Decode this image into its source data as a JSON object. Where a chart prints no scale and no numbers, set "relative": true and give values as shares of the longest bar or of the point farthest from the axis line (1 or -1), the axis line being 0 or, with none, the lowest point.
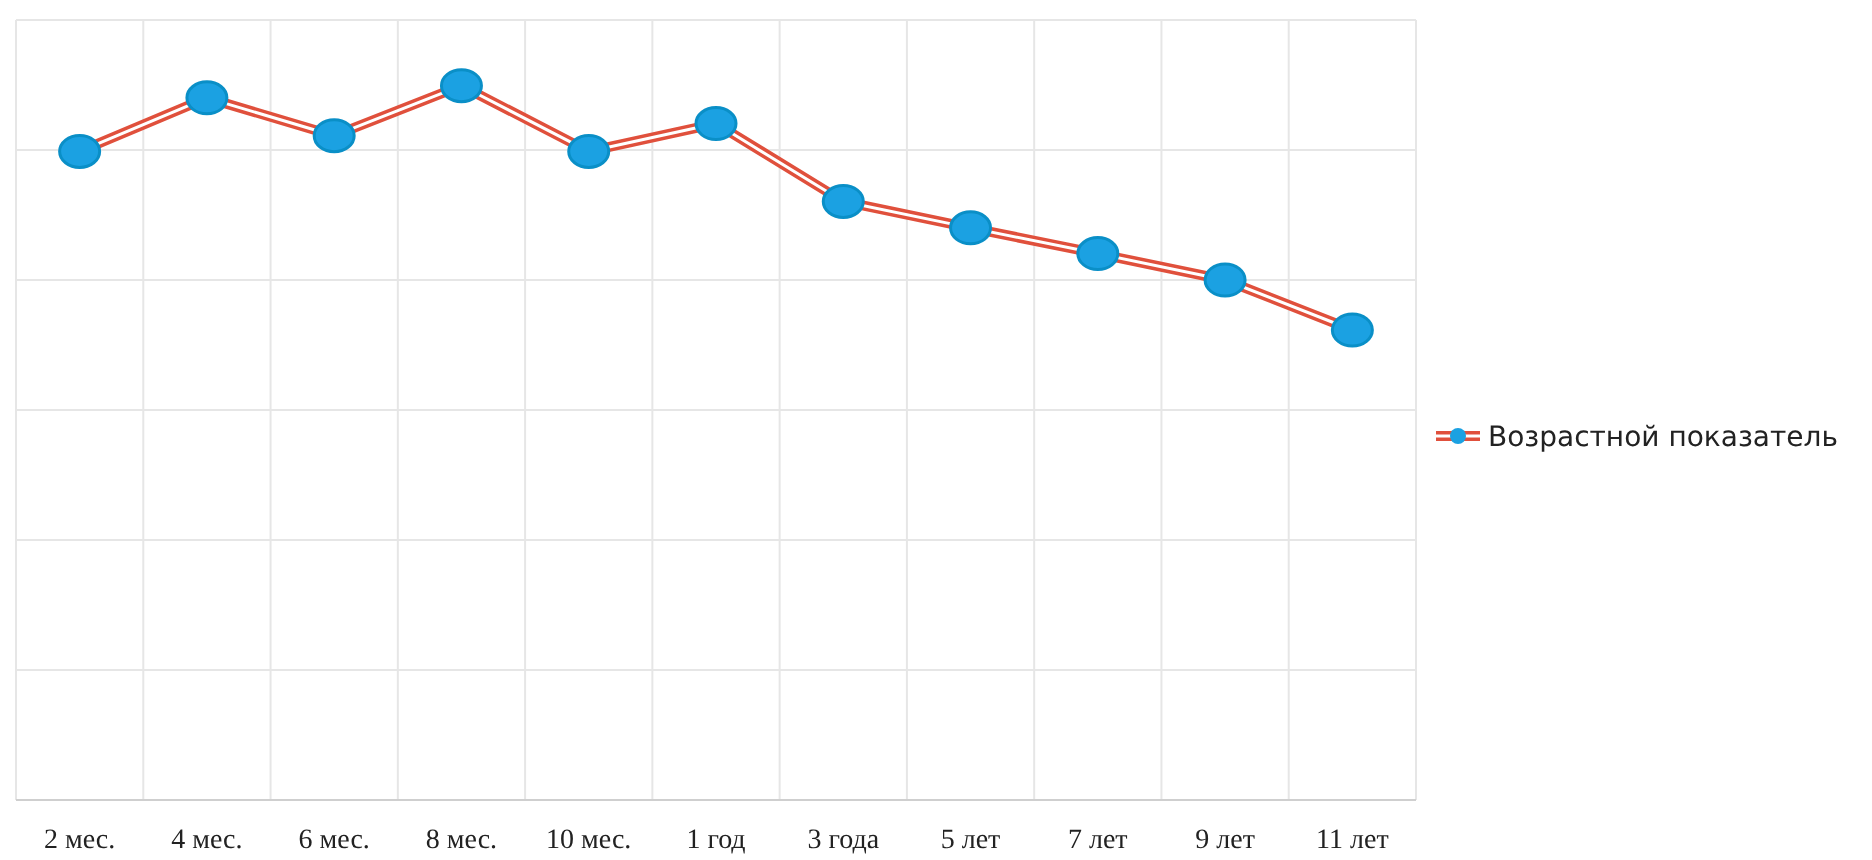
{
  "chart_data": {
    "type": "line",
    "relative": true,
    "categories": [
      "2 мес.",
      "4 мес.",
      "6 мес.",
      "8 мес.",
      "10 мес.",
      "1 год",
      "3 года",
      "5 лет",
      "7 лет",
      "9 лет",
      "11 лет"
    ],
    "series": [
      {
        "name": "Возрастной показатель",
        "color": "#e0503c",
        "values": [
          0.908,
          0.983,
          0.93,
          1,
          0.908,
          0.947,
          0.838,
          0.801,
          0.765,
          0.728,
          0.658
        ]
      }
    ],
    "marker": "circle",
    "grid": true,
    "legend": "right"
  }
}
